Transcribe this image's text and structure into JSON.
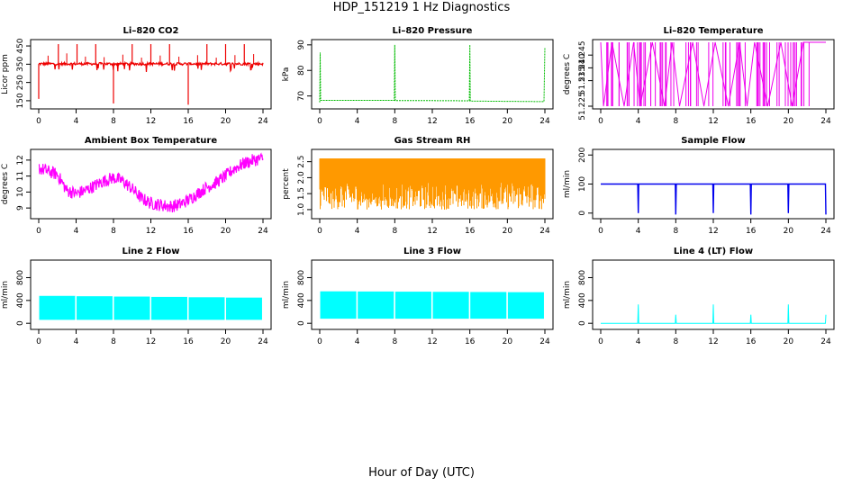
{
  "title": "HDP_151219  1 Hz Diagnostics",
  "xlabel": "Hour of Day (UTC)",
  "chart_data": [
    {
      "type": "line",
      "title": "Li–820 CO2",
      "ylabel": "Licor ppm",
      "color": "#ee0000",
      "xticks": [
        0,
        4,
        8,
        12,
        16,
        20,
        24
      ],
      "yticks": [
        "150",
        "250",
        "350",
        "450"
      ],
      "ytick_values": [
        150,
        250,
        350,
        450
      ],
      "xlim": [
        0,
        24
      ],
      "ylim": [
        120,
        470
      ],
      "series": [
        {
          "x": [
            0,
            0.2,
            2,
            2.1,
            4,
            4.1,
            6,
            6.1,
            7.9,
            8,
            8.1,
            10,
            10.1,
            12,
            12.1,
            14,
            14.1,
            15.9,
            16,
            16.1,
            18,
            18.1,
            20,
            20.1,
            22,
            22.1,
            24
          ],
          "y": [
            160,
            352,
            352,
            460,
            352,
            460,
            352,
            460,
            352,
            135,
            352,
            460,
            352,
            460,
            352,
            460,
            352,
            352,
            128,
            352,
            460,
            352,
            460,
            352,
            460,
            352,
            352
          ]
        }
      ]
    },
    {
      "type": "line",
      "title": "Li–820 Pressure",
      "ylabel": "kPa",
      "color": "#00bb00",
      "xticks": [
        0,
        4,
        8,
        12,
        16,
        20,
        24
      ],
      "yticks": [
        "70",
        "80",
        "90"
      ],
      "ytick_values": [
        70,
        80,
        90
      ],
      "xlim": [
        0,
        24
      ],
      "ylim": [
        66,
        91
      ],
      "series": [
        {
          "x": [
            0,
            0.05,
            0.1,
            4,
            7.95,
            8,
            8.05,
            12,
            15.95,
            16,
            16.05,
            20,
            23.9,
            24
          ],
          "y": [
            67.5,
            87,
            68.3,
            68.3,
            68.3,
            90,
            68.2,
            68.2,
            68.1,
            90,
            68,
            67.9,
            67.8,
            89
          ]
        }
      ]
    },
    {
      "type": "line",
      "title": "Li–820 Temperature",
      "ylabel": "degrees C",
      "color": "#ee00ee",
      "xticks": [
        0,
        4,
        8,
        12,
        16,
        20,
        24
      ],
      "yticks": [
        "51.225",
        "51.235",
        "51.240",
        "51.245"
      ],
      "ytick_values": [
        51.225,
        51.235,
        51.24,
        51.245
      ],
      "xlim": [
        0,
        24
      ],
      "ylim": [
        51.225,
        51.25
      ],
      "series": [
        {
          "x": [
            0,
            0.3,
            1.2,
            2.5,
            3.5,
            4.2,
            5.5,
            6.8,
            7.6,
            8.4,
            9.8,
            11,
            12.2,
            13.6,
            14.8,
            15.6,
            16.4,
            17.8,
            19.2,
            20.4,
            21.6,
            24
          ],
          "y": [
            51.25,
            51.225,
            51.25,
            51.225,
            51.25,
            51.225,
            51.25,
            51.225,
            51.25,
            51.225,
            51.25,
            51.225,
            51.25,
            51.225,
            51.25,
            51.225,
            51.25,
            51.225,
            51.25,
            51.225,
            51.25,
            51.25
          ]
        }
      ]
    },
    {
      "type": "line",
      "title": "Ambient Box Temperature",
      "ylabel": "degrees C",
      "color": "#ff00ff",
      "xticks": [
        0,
        4,
        8,
        12,
        16,
        20,
        24
      ],
      "yticks": [
        "9",
        "10",
        "11",
        "12"
      ],
      "ytick_values": [
        9,
        10,
        11,
        12
      ],
      "xlim": [
        0,
        24
      ],
      "ylim": [
        8.5,
        12.5
      ],
      "series": [
        {
          "x": [
            0,
            1,
            2,
            3,
            4,
            5,
            6,
            7,
            8,
            9,
            10,
            11,
            12,
            13,
            14,
            15,
            16,
            17,
            18,
            19,
            20,
            21,
            22,
            23,
            24
          ],
          "y": [
            11.5,
            11.3,
            11.1,
            10.1,
            9.9,
            10.1,
            10.4,
            10.7,
            10.9,
            10.7,
            10.2,
            9.6,
            9.3,
            9.2,
            9.1,
            9.2,
            9.5,
            9.9,
            10.3,
            10.6,
            11.0,
            11.5,
            11.8,
            12.0,
            12.1
          ]
        }
      ]
    },
    {
      "type": "line",
      "title": "Gas Stream RH",
      "ylabel": "percent",
      "color": "#ff9900",
      "xticks": [
        0,
        4,
        8,
        12,
        16,
        20,
        24
      ],
      "yticks": [
        "1.0",
        "1.5",
        "2.0",
        "2.5"
      ],
      "ytick_values": [
        1.0,
        1.5,
        2.0,
        2.5
      ],
      "xlim": [
        0,
        24
      ],
      "ylim": [
        0.8,
        2.8
      ],
      "series": [
        {
          "x": [
            0,
            24
          ],
          "y": [
            1.0,
            2.6
          ]
        }
      ]
    },
    {
      "type": "line",
      "title": "Sample Flow",
      "ylabel": "ml/min",
      "color": "#0000ee",
      "xticks": [
        0,
        4,
        8,
        12,
        16,
        20,
        24
      ],
      "yticks": [
        "0",
        "100",
        "200"
      ],
      "ytick_values": [
        0,
        100,
        200
      ],
      "xlim": [
        0,
        24
      ],
      "ylim": [
        -10,
        210
      ],
      "series": [
        {
          "x": [
            0,
            3.95,
            4,
            4.05,
            7.95,
            8,
            8.05,
            11.95,
            12,
            12.05,
            15.95,
            16,
            16.05,
            19.95,
            20,
            20.05,
            23.95,
            24
          ],
          "y": [
            100,
            100,
            0,
            100,
            100,
            -5,
            100,
            100,
            0,
            100,
            100,
            -5,
            100,
            100,
            0,
            100,
            100,
            -5
          ]
        }
      ]
    },
    {
      "type": "line",
      "title": "Line 2 Flow",
      "ylabel": "ml/min",
      "color": "#00ffff",
      "xticks": [
        0,
        4,
        8,
        12,
        16,
        20,
        24
      ],
      "yticks": [
        "0",
        "400",
        "800"
      ],
      "ytick_values": [
        0,
        400,
        800
      ],
      "xlim": [
        0,
        24
      ],
      "ylim": [
        -60,
        1060
      ],
      "series": [
        {
          "x": [
            0,
            24
          ],
          "y": [
            60,
            480
          ]
        }
      ]
    },
    {
      "type": "line",
      "title": "Line 3 Flow",
      "ylabel": "ml/min",
      "color": "#00ffff",
      "xticks": [
        0,
        4,
        8,
        12,
        16,
        20,
        24
      ],
      "yticks": [
        "0",
        "400",
        "800"
      ],
      "ytick_values": [
        0,
        400,
        800
      ],
      "xlim": [
        0,
        24
      ],
      "ylim": [
        -60,
        1060
      ],
      "series": [
        {
          "x": [
            0,
            24
          ],
          "y": [
            80,
            560
          ]
        }
      ]
    },
    {
      "type": "line",
      "title": "Line 4 (LT) Flow",
      "ylabel": "ml/min",
      "color": "#00ffff",
      "xticks": [
        0,
        4,
        8,
        12,
        16,
        20,
        24
      ],
      "yticks": [
        "0",
        "400",
        "800"
      ],
      "ytick_values": [
        0,
        400,
        800
      ],
      "xlim": [
        0,
        24
      ],
      "ylim": [
        -60,
        1060
      ],
      "series": [
        {
          "x": [
            0,
            3.95,
            4,
            4.05,
            7.95,
            8,
            8.05,
            11.95,
            12,
            12.05,
            15.95,
            16,
            16.05,
            19.95,
            20,
            20.05,
            23.95,
            24
          ],
          "y": [
            0,
            0,
            330,
            0,
            0,
            150,
            0,
            0,
            330,
            0,
            0,
            150,
            0,
            0,
            330,
            0,
            0,
            150
          ]
        }
      ]
    }
  ]
}
